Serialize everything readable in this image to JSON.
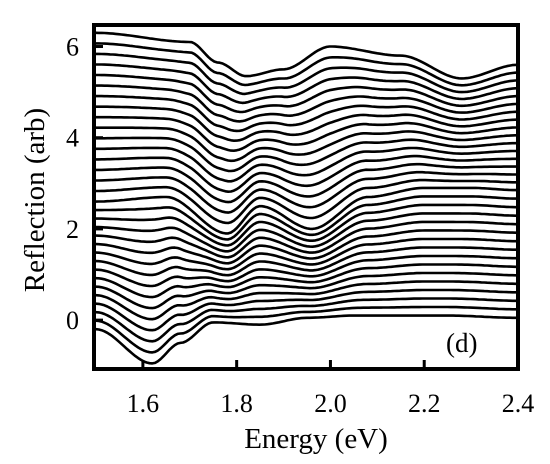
{
  "chart_data": {
    "type": "line",
    "title": "",
    "xlabel": "Energy (eV)",
    "ylabel": "Reflection (arb)",
    "xlim": [
      1.5,
      2.4
    ],
    "ylim": [
      -1.05,
      6.45
    ],
    "x_ticks": [
      1.6,
      1.8,
      2.0,
      2.2,
      2.4
    ],
    "x_tick_labels": [
      "1.6",
      "1.8",
      "2.0",
      "2.2",
      "2.4"
    ],
    "y_ticks": [
      0,
      2,
      4,
      6
    ],
    "y_tick_labels": [
      "0",
      "2",
      "4",
      "6"
    ],
    "grid": false,
    "legend": "none",
    "annotation": "(d)",
    "curve_count": 32,
    "curve_spacing": 0.215,
    "series": [
      {
        "curve_index": 0,
        "x": [
          1.5,
          1.62,
          1.68,
          1.75,
          1.85,
          1.95,
          2.05,
          2.15,
          2.25,
          2.4
        ],
        "y": [
          -0.2,
          -0.95,
          -0.5,
          -0.05,
          -0.1,
          0.05,
          0.1,
          0.1,
          0.1,
          0.05
        ]
      },
      {
        "curve_index": 15,
        "x": [
          1.5,
          1.65,
          1.78,
          1.85,
          1.96,
          2.08,
          2.2,
          2.3,
          2.4
        ],
        "y": [
          2.6,
          2.7,
          1.9,
          2.5,
          2.0,
          2.7,
          2.9,
          2.9,
          2.85
        ]
      },
      {
        "curve_index": 31,
        "x": [
          1.5,
          1.7,
          1.76,
          1.82,
          1.9,
          2.0,
          2.15,
          2.28,
          2.4
        ],
        "y": [
          6.3,
          6.1,
          5.65,
          5.35,
          5.5,
          6.0,
          5.8,
          5.3,
          5.6
        ]
      }
    ]
  }
}
